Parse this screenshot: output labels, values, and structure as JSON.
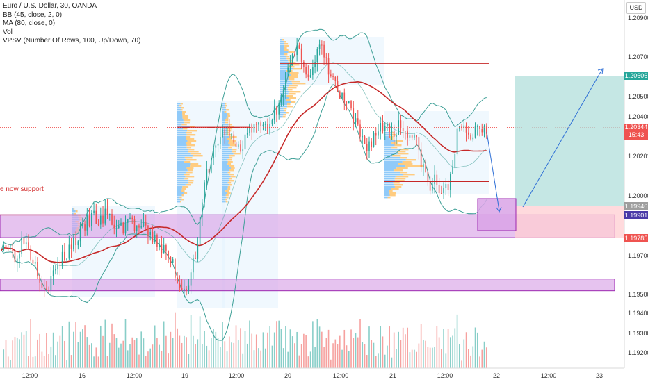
{
  "chart": {
    "symbol_line": "Euro / U.S. Dollar, 30, OANDA",
    "indicators": [
      "BB (45, close, 2, 0)",
      "MA (80, close, 0)",
      "Vol",
      "VPSV (Number Of Rows, 100, Up/Down, 70)"
    ],
    "annotation": "e now support",
    "currency": "USD",
    "price_tags": {
      "target": "1.20606",
      "current_price": "1.20344",
      "countdown": "15:43",
      "entry": "1.19946",
      "zone": "1.19901",
      "stop": "1.19785"
    },
    "colors": {
      "up": "#26a69a",
      "down": "#ef5350",
      "ma": "#c62828",
      "bb": "#3d9f96",
      "zone_fill": "#d9a3e6",
      "zone_stroke": "#9c27b0",
      "price_line": "#ef5350",
      "target_fill": "#b2dfdb",
      "stop_fill": "#ffcdd2",
      "vp_up": "#90caf9",
      "vp_down": "#ffcc80"
    }
  },
  "chart_data": {
    "type": "candlestick",
    "symbol": "EURUSD",
    "timeframe": "30",
    "y_axis_ticks": [
      "1.20900",
      "1.20700",
      "1.20500",
      "1.20400",
      "1.20201",
      "1.20000",
      "1.19700",
      "1.19500",
      "1.19400",
      "1.19300",
      "1.19200"
    ],
    "x_axis_ticks": [
      "12:00",
      "16",
      "12:00",
      "19",
      "12:00",
      "20",
      "12:00",
      "21",
      "12:00",
      "22",
      "12:00",
      "23"
    ],
    "ylim": [
      1.1912,
      1.21
    ],
    "horizontal_levels": [
      1.2067,
      1.20345,
      1.2007,
      1.1997
    ],
    "support_zones": [
      [
        1.19785,
        1.19901
      ],
      [
        1.19515,
        1.19575
      ]
    ],
    "position": {
      "entry": 1.19946,
      "target": 1.20606,
      "stop": 1.19785
    },
    "current_price": 1.20344,
    "price_path": [
      1.1976,
      1.1975,
      1.1972,
      1.1969,
      1.1974,
      1.1978,
      1.1973,
      1.1968,
      1.1963,
      1.1956,
      1.1954,
      1.1957,
      1.1962,
      1.1966,
      1.1969,
      1.1973,
      1.1976,
      1.1979,
      1.1982,
      1.1986,
      1.1989,
      1.1988,
      1.1986,
      1.199,
      1.1988,
      1.1985,
      1.1983,
      1.1984,
      1.1988,
      1.1986,
      1.1983,
      1.1984,
      1.1981,
      1.1979,
      1.1977,
      1.1975,
      1.1972,
      1.1968,
      1.1965,
      1.1957,
      1.1952,
      1.1955,
      1.196,
      1.197,
      1.1985,
      1.2005,
      1.2015,
      1.2022,
      1.2028,
      1.2031,
      1.2034,
      1.2028,
      1.2025,
      1.2023,
      1.203,
      1.2033,
      1.2035,
      1.2034,
      1.2036,
      1.2034,
      1.204,
      1.2045,
      1.2053,
      1.206,
      1.2066,
      1.207,
      1.2075,
      1.2068,
      1.206,
      1.2063,
      1.2072,
      1.2075,
      1.2066,
      1.2061,
      1.2056,
      1.205,
      1.2048,
      1.2044,
      1.2038,
      1.2033,
      1.2028,
      1.2025,
      1.2028,
      1.2032,
      1.2034,
      1.2036,
      1.2034,
      1.2032,
      1.2036,
      1.2034,
      1.2033,
      1.203,
      1.2026,
      1.2018,
      1.201,
      1.2003,
      1.2008,
      1.2003,
      1.2001,
      1.2004,
      1.2018,
      1.203,
      1.2034,
      1.2031,
      1.203,
      1.2033,
      1.2035,
      1.2034
    ]
  }
}
